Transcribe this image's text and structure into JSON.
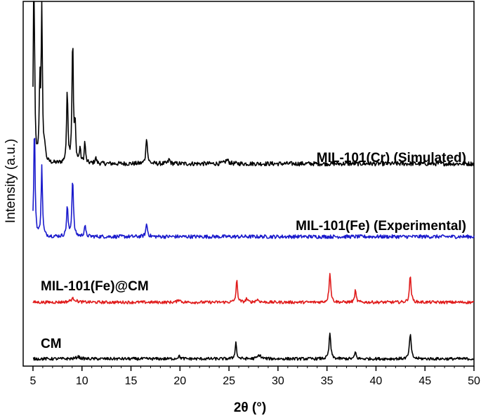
{
  "chart_data": {
    "type": "line",
    "title": "",
    "xlabel": "2θ (°)",
    "ylabel": "Intensity (a.u.)",
    "xlim": [
      4,
      50
    ],
    "xticks": [
      5,
      10,
      15,
      20,
      25,
      30,
      35,
      40,
      45,
      50
    ],
    "xtick_labels": [
      "5",
      "10",
      "15",
      "20",
      "25",
      "30",
      "35",
      "40",
      "45",
      "50"
    ],
    "yticks_shown": false,
    "series": [
      {
        "name": "MIL-101(Cr) (Simulated)",
        "color": "#000000",
        "baseline": 0.555,
        "noise": 0.006,
        "peaks": [
          {
            "x": 5.1,
            "h": 0.62,
            "w": 0.07
          },
          {
            "x": 5.7,
            "h": 0.21,
            "w": 0.07
          },
          {
            "x": 5.9,
            "h": 0.44,
            "w": 0.07
          },
          {
            "x": 6.2,
            "h": 0.04,
            "w": 0.09
          },
          {
            "x": 8.5,
            "h": 0.2,
            "w": 0.08
          },
          {
            "x": 9.05,
            "h": 0.34,
            "w": 0.08
          },
          {
            "x": 9.3,
            "h": 0.1,
            "w": 0.07
          },
          {
            "x": 9.8,
            "h": 0.04,
            "w": 0.08
          },
          {
            "x": 10.3,
            "h": 0.06,
            "w": 0.07
          },
          {
            "x": 11.4,
            "h": 0.015,
            "w": 0.1
          },
          {
            "x": 16.6,
            "h": 0.075,
            "w": 0.09
          },
          {
            "x": 18.9,
            "h": 0.012,
            "w": 0.1
          },
          {
            "x": 24.8,
            "h": 0.01,
            "w": 0.2
          }
        ]
      },
      {
        "name": "MIL-101(Fe) (Experimental)",
        "color": "#1a1acc",
        "baseline": 0.355,
        "noise": 0.005,
        "peaks": [
          {
            "x": 5.15,
            "h": 0.3,
            "w": 0.08
          },
          {
            "x": 5.9,
            "h": 0.19,
            "w": 0.08
          },
          {
            "x": 8.5,
            "h": 0.08,
            "w": 0.09
          },
          {
            "x": 9.05,
            "h": 0.16,
            "w": 0.09
          },
          {
            "x": 10.3,
            "h": 0.03,
            "w": 0.09
          },
          {
            "x": 16.6,
            "h": 0.035,
            "w": 0.1
          }
        ]
      },
      {
        "name": "MIL-101(Fe)@CM",
        "color": "#e01b1b",
        "baseline": 0.175,
        "noise": 0.004,
        "peaks": [
          {
            "x": 9.1,
            "h": 0.01,
            "w": 0.3
          },
          {
            "x": 19.9,
            "h": 0.008,
            "w": 0.15
          },
          {
            "x": 25.8,
            "h": 0.06,
            "w": 0.09
          },
          {
            "x": 26.8,
            "h": 0.01,
            "w": 0.1
          },
          {
            "x": 27.9,
            "h": 0.007,
            "w": 0.2
          },
          {
            "x": 35.3,
            "h": 0.082,
            "w": 0.1
          },
          {
            "x": 37.9,
            "h": 0.032,
            "w": 0.09
          },
          {
            "x": 43.5,
            "h": 0.072,
            "w": 0.1
          }
        ]
      },
      {
        "name": "CM",
        "color": "#000000",
        "baseline": 0.02,
        "noise": 0.004,
        "peaks": [
          {
            "x": 9.6,
            "h": 0.006,
            "w": 0.2
          },
          {
            "x": 19.9,
            "h": 0.007,
            "w": 0.15
          },
          {
            "x": 25.7,
            "h": 0.045,
            "w": 0.09
          },
          {
            "x": 28.1,
            "h": 0.01,
            "w": 0.2
          },
          {
            "x": 35.3,
            "h": 0.07,
            "w": 0.1
          },
          {
            "x": 37.9,
            "h": 0.02,
            "w": 0.08
          },
          {
            "x": 43.5,
            "h": 0.07,
            "w": 0.1
          }
        ]
      }
    ]
  }
}
